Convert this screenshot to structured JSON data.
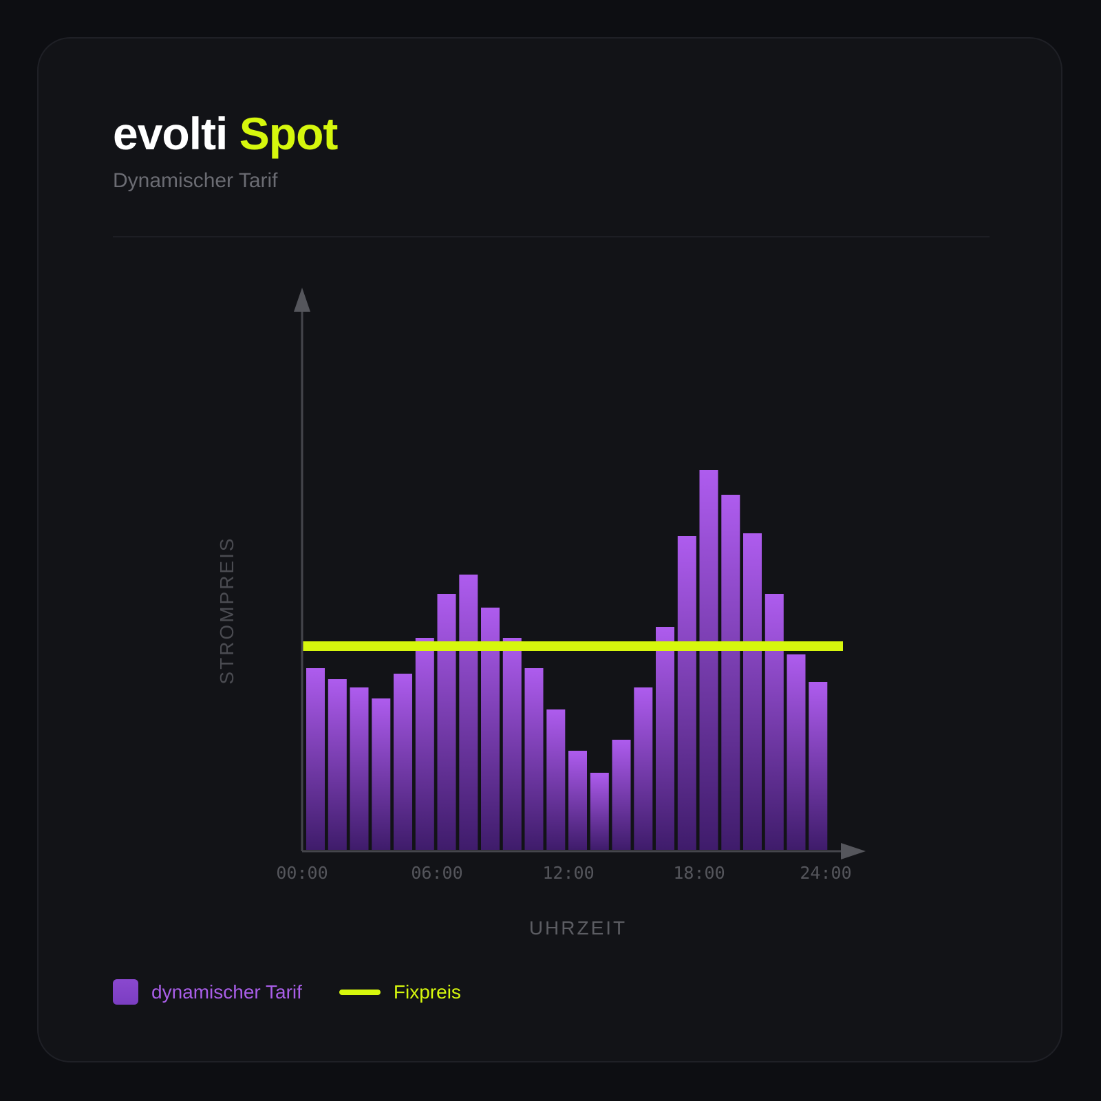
{
  "brand": {
    "name": "evolti",
    "accent_word": "Spot",
    "subtitle": "Dynamischer Tarif"
  },
  "colors": {
    "accent": "#d6f70d",
    "bar_top": "#ae5cee",
    "bar_bottom": "#3f1c6b",
    "legend_purple": "#a95ee8"
  },
  "chart_data": {
    "type": "bar",
    "ylabel": "STROMPREIS",
    "xlabel": "UHRZEIT",
    "x_ticks": [
      "00:00",
      "06:00",
      "12:00",
      "18:00",
      "24:00"
    ],
    "grid": false,
    "legend_position": "bottom-left",
    "ylim": [
      0,
      100
    ],
    "hours": [
      0,
      1,
      2,
      3,
      4,
      5,
      6,
      7,
      8,
      9,
      10,
      11,
      12,
      13,
      14,
      15,
      16,
      17,
      18,
      19,
      20,
      21,
      22,
      23
    ],
    "series": [
      {
        "name": "dynamischer Tarif",
        "type": "bar",
        "values": [
          33,
          31,
          29.5,
          27.5,
          32,
          38.5,
          46.5,
          50,
          44,
          38.5,
          33,
          25.5,
          18,
          14,
          20,
          29.5,
          40.5,
          57,
          69,
          64.5,
          57.5,
          46.5,
          35.5,
          30.5
        ]
      },
      {
        "name": "Fixpreis",
        "type": "line",
        "value": 37
      }
    ]
  },
  "legend": [
    {
      "label": "dynamischer Tarif"
    },
    {
      "label": "Fixpreis"
    }
  ]
}
